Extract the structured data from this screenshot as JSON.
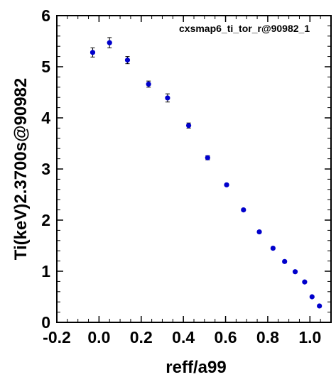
{
  "chart_data": {
    "type": "scatter",
    "annotation": "cxsmap6_ti_tor_r@90982_1",
    "xlabel": "reff/a99",
    "ylabel": "Ti(keV)2.3700s@90982",
    "xlim": [
      -0.2,
      1.1
    ],
    "ylim": [
      0,
      6
    ],
    "x_ticks": [
      "-0.2",
      "0.0",
      "0.2",
      "0.4",
      "0.6",
      "0.8",
      "1.0"
    ],
    "x_tick_values": [
      -0.2,
      0.0,
      0.2,
      0.4,
      0.6,
      0.8,
      1.0
    ],
    "y_ticks": [
      "0",
      "1",
      "2",
      "3",
      "4",
      "5",
      "6"
    ],
    "y_tick_values": [
      0,
      1,
      2,
      3,
      4,
      5,
      6
    ],
    "marker_color": "#0000cc",
    "grid": false,
    "points": [
      {
        "x": -0.03,
        "y": 5.28,
        "err": 0.09
      },
      {
        "x": 0.05,
        "y": 5.47,
        "err": 0.1
      },
      {
        "x": 0.135,
        "y": 5.13,
        "err": 0.07
      },
      {
        "x": 0.235,
        "y": 4.66,
        "err": 0.06
      },
      {
        "x": 0.325,
        "y": 4.39,
        "err": 0.08
      },
      {
        "x": 0.425,
        "y": 3.85,
        "err": 0.05
      },
      {
        "x": 0.515,
        "y": 3.22,
        "err": 0.04
      },
      {
        "x": 0.605,
        "y": 2.69,
        "err": 0.02
      },
      {
        "x": 0.685,
        "y": 2.2,
        "err": 0.02
      },
      {
        "x": 0.76,
        "y": 1.77,
        "err": 0.02
      },
      {
        "x": 0.825,
        "y": 1.45,
        "err": 0.02
      },
      {
        "x": 0.88,
        "y": 1.19,
        "err": 0.02
      },
      {
        "x": 0.93,
        "y": 0.99,
        "err": 0.02
      },
      {
        "x": 0.975,
        "y": 0.79,
        "err": 0.02
      },
      {
        "x": 1.01,
        "y": 0.5,
        "err": 0.02
      },
      {
        "x": 1.045,
        "y": 0.32,
        "err": 0.02
      }
    ]
  }
}
